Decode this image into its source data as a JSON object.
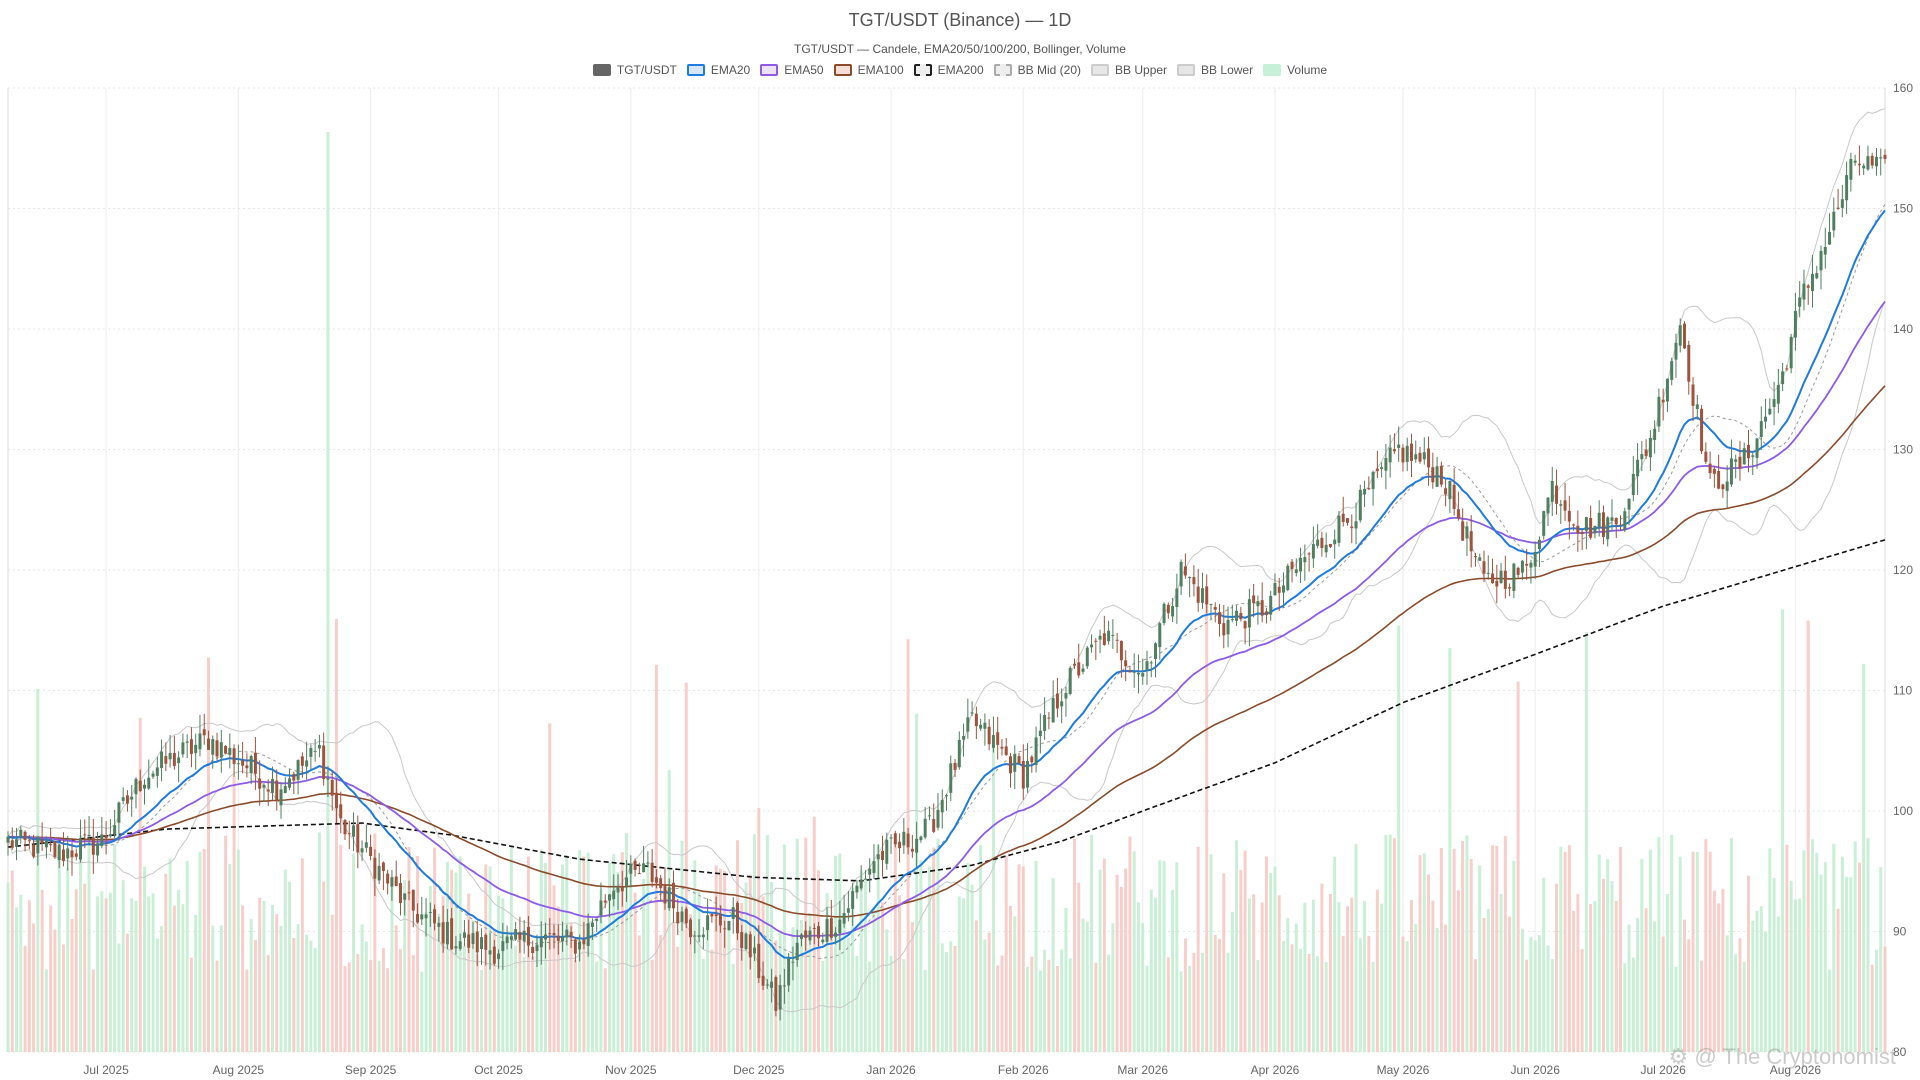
{
  "chart_data": {
    "type": "candlestick",
    "title": "TGT/USDT (Binance) — 1D",
    "subtitle": "TGT/USDT — Candele, EMA20/50/100/200, Bollinger, Volume",
    "legend": [
      {
        "name": "TGT/USDT",
        "fill": "#666666",
        "border": "#666666",
        "dashed": false
      },
      {
        "name": "EMA20",
        "fill": "#d6e6f7",
        "border": "#1e7be0",
        "dashed": false
      },
      {
        "name": "EMA50",
        "fill": "#ece2fb",
        "border": "#8d5be8",
        "dashed": false
      },
      {
        "name": "EMA100",
        "fill": "#f3dfd6",
        "border": "#8b4a2a",
        "dashed": false
      },
      {
        "name": "EMA200",
        "fill": "#eeeeee",
        "border": "#222222",
        "dashed": true
      },
      {
        "name": "BB Mid (20)",
        "fill": "#eeeeee",
        "border": "#aaaaaa",
        "dashed": true
      },
      {
        "name": "BB Upper",
        "fill": "#e6e6e6",
        "border": "#cccccc",
        "dashed": false
      },
      {
        "name": "BB Lower",
        "fill": "#e6e6e6",
        "border": "#cccccc",
        "dashed": false
      },
      {
        "name": "Volume",
        "fill": "#c8f0d8",
        "border": "#c8f0d8",
        "dashed": false
      }
    ],
    "ylim": [
      80,
      160
    ],
    "y_ticks": [
      80,
      90,
      100,
      110,
      120,
      130,
      140,
      150,
      160
    ],
    "x_ticks": [
      "Jul 2025",
      "Aug 2025",
      "Sep 2025",
      "Oct 2025",
      "Nov 2025",
      "Dec 2025",
      "Jan 2026",
      "Feb 2026",
      "Mar 2026",
      "Apr 2026",
      "May 2026",
      "Jun 2026",
      "Jul 2026",
      "Aug 2026"
    ],
    "x_range": [
      "2025-06-08",
      "2026-08-22"
    ],
    "grid": true,
    "legend_position": "top-center",
    "colors": {
      "up": "#4f7f5f",
      "down": "#a0523d",
      "vol_up": "#bfeccf",
      "vol_down": "#f6c6c0"
    },
    "close_keypoints": [
      [
        "2025-06-08",
        97.5
      ],
      [
        "2025-06-20",
        96.5
      ],
      [
        "2025-06-30",
        97.5
      ],
      [
        "2025-07-10",
        103
      ],
      [
        "2025-07-25",
        106
      ],
      [
        "2025-08-10",
        102
      ],
      [
        "2025-08-20",
        105
      ],
      [
        "2025-08-25",
        99
      ],
      [
        "2025-09-01",
        96
      ],
      [
        "2025-09-10",
        92
      ],
      [
        "2025-09-20",
        89.5
      ],
      [
        "2025-09-30",
        88.5
      ],
      [
        "2025-10-10",
        89.5
      ],
      [
        "2025-10-20",
        89
      ],
      [
        "2025-10-28",
        94
      ],
      [
        "2025-11-05",
        95
      ],
      [
        "2025-11-15",
        90.5
      ],
      [
        "2025-11-25",
        91
      ],
      [
        "2025-12-05",
        84
      ],
      [
        "2025-12-10",
        89
      ],
      [
        "2025-12-20",
        91
      ],
      [
        "2025-12-28",
        96
      ],
      [
        "2026-01-10",
        98.5
      ],
      [
        "2026-01-20",
        107.5
      ],
      [
        "2026-02-01",
        103
      ],
      [
        "2026-02-10",
        110
      ],
      [
        "2026-02-20",
        114.5
      ],
      [
        "2026-03-01",
        111.5
      ],
      [
        "2026-03-10",
        120
      ],
      [
        "2026-03-20",
        115.5
      ],
      [
        "2026-03-30",
        117
      ],
      [
        "2026-04-08",
        121
      ],
      [
        "2026-04-20",
        125
      ],
      [
        "2026-04-30",
        130
      ],
      [
        "2026-05-10",
        128
      ],
      [
        "2026-05-20",
        119
      ],
      [
        "2026-05-30",
        120
      ],
      [
        "2026-06-05",
        127
      ],
      [
        "2026-06-12",
        123.5
      ],
      [
        "2026-06-20",
        124
      ],
      [
        "2026-06-28",
        131
      ],
      [
        "2026-07-05",
        140.5
      ],
      [
        "2026-07-12",
        127
      ],
      [
        "2026-07-20",
        129
      ],
      [
        "2026-07-28",
        135
      ],
      [
        "2026-08-02",
        142
      ],
      [
        "2026-08-10",
        149
      ],
      [
        "2026-08-15",
        154
      ],
      [
        "2026-08-22",
        153
      ]
    ],
    "ema200_keypoints": [
      [
        "2025-06-08",
        97
      ],
      [
        "2025-07-15",
        98.5
      ],
      [
        "2025-08-30",
        99
      ],
      [
        "2025-09-20",
        98
      ],
      [
        "2025-10-20",
        96
      ],
      [
        "2025-11-30",
        94.5
      ],
      [
        "2025-12-25",
        94.2
      ],
      [
        "2026-01-20",
        95.5
      ],
      [
        "2026-02-10",
        97.5
      ],
      [
        "2026-03-01",
        100
      ],
      [
        "2026-04-01",
        104
      ],
      [
        "2026-05-01",
        109
      ],
      [
        "2026-06-01",
        113
      ],
      [
        "2026-07-01",
        117
      ],
      [
        "2026-08-22",
        122.5
      ]
    ]
  }
}
